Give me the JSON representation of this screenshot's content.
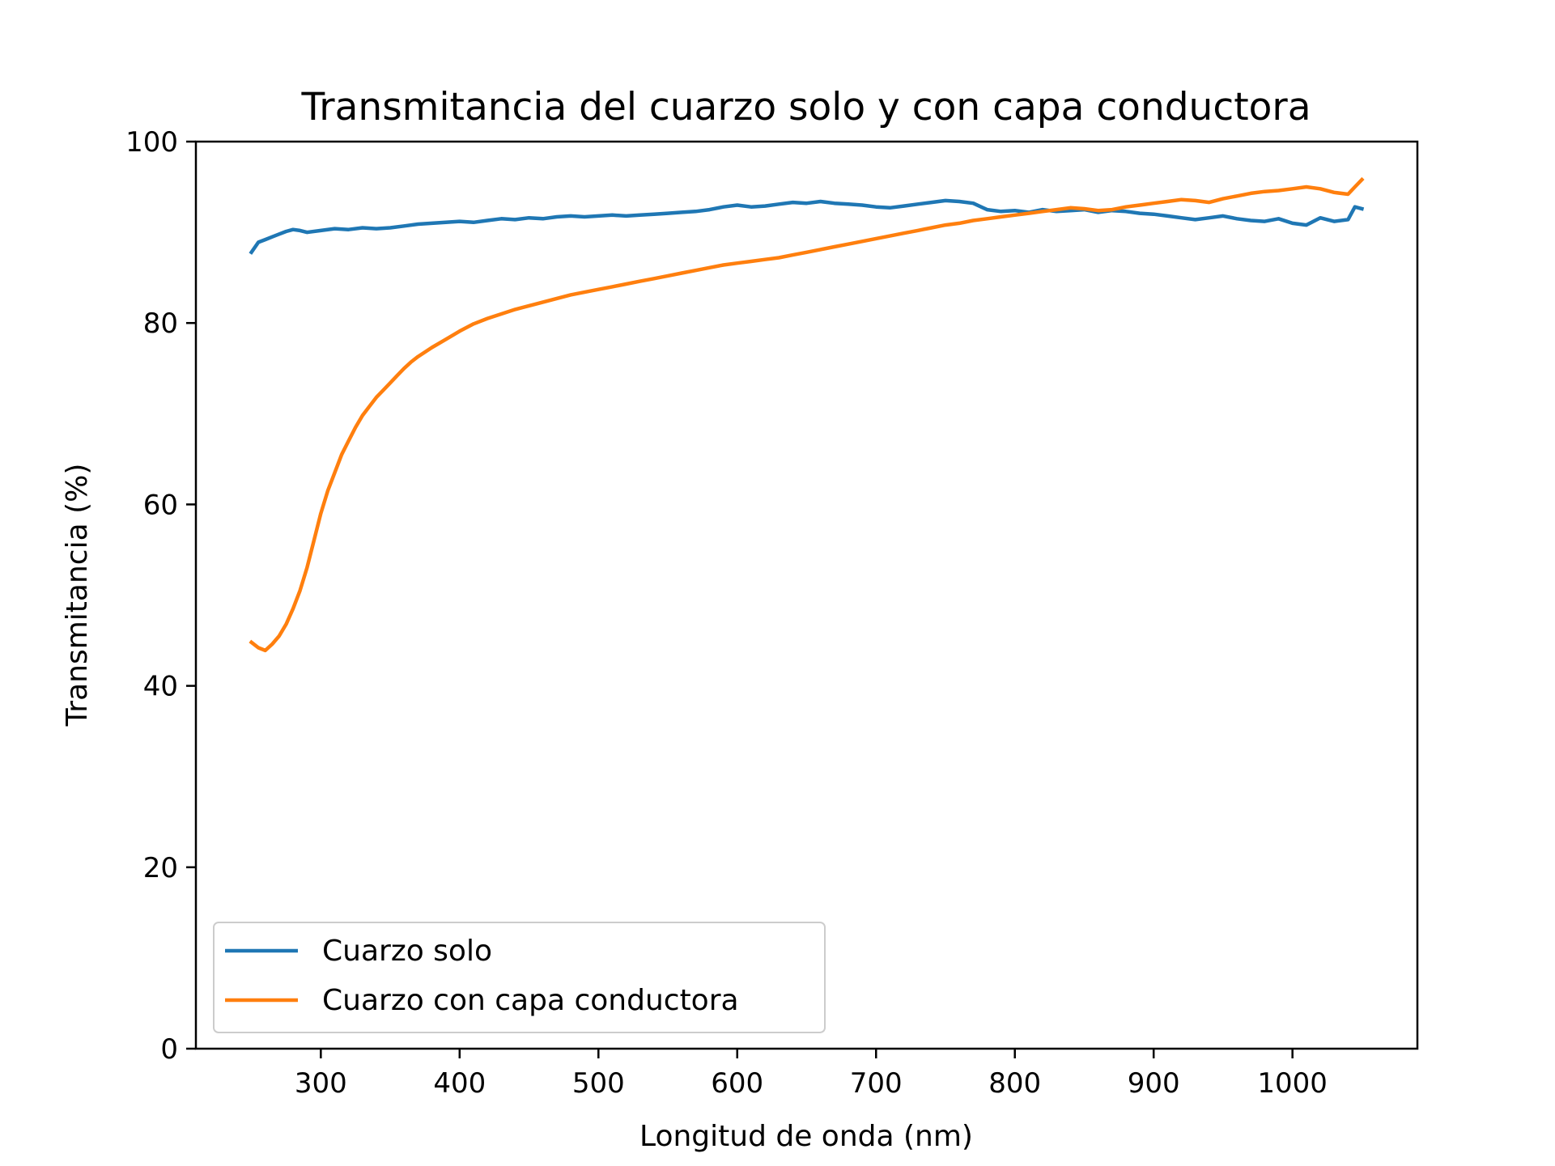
{
  "chart_data": {
    "type": "line",
    "title": "Transmitancia del cuarzo solo y con capa conductora",
    "xlabel": "Longitud de onda (nm)",
    "ylabel": "Transmitancia (%)",
    "xlim": [
      210,
      1090
    ],
    "ylim": [
      0,
      100
    ],
    "xticks": [
      300,
      400,
      500,
      600,
      700,
      800,
      900,
      1000
    ],
    "yticks": [
      0,
      20,
      40,
      60,
      80,
      100
    ],
    "grid": false,
    "legend_position": "lower-left",
    "series": [
      {
        "name": "Cuarzo solo",
        "color": "#1f77b4",
        "x": [
          250,
          255,
          260,
          265,
          270,
          275,
          280,
          285,
          290,
          300,
          310,
          320,
          330,
          340,
          350,
          360,
          370,
          380,
          390,
          400,
          410,
          420,
          430,
          440,
          450,
          460,
          470,
          480,
          490,
          500,
          510,
          520,
          530,
          540,
          550,
          560,
          570,
          580,
          590,
          600,
          610,
          620,
          630,
          640,
          650,
          660,
          670,
          680,
          690,
          700,
          710,
          720,
          730,
          740,
          750,
          760,
          770,
          780,
          790,
          800,
          810,
          820,
          830,
          840,
          850,
          860,
          870,
          880,
          890,
          900,
          910,
          920,
          930,
          940,
          950,
          960,
          970,
          980,
          990,
          1000,
          1010,
          1020,
          1030,
          1040,
          1045,
          1050
        ],
        "values": [
          87.8,
          88.9,
          89.2,
          89.5,
          89.8,
          90.1,
          90.3,
          90.2,
          90.0,
          90.2,
          90.4,
          90.3,
          90.5,
          90.4,
          90.5,
          90.7,
          90.9,
          91.0,
          91.1,
          91.2,
          91.1,
          91.3,
          91.5,
          91.4,
          91.6,
          91.5,
          91.7,
          91.8,
          91.7,
          91.8,
          91.9,
          91.8,
          91.9,
          92.0,
          92.1,
          92.2,
          92.3,
          92.5,
          92.8,
          93.0,
          92.8,
          92.9,
          93.1,
          93.3,
          93.2,
          93.4,
          93.2,
          93.1,
          93.0,
          92.8,
          92.7,
          92.9,
          93.1,
          93.3,
          93.5,
          93.4,
          93.2,
          92.5,
          92.3,
          92.4,
          92.2,
          92.5,
          92.3,
          92.4,
          92.5,
          92.2,
          92.4,
          92.3,
          92.1,
          92.0,
          91.8,
          91.6,
          91.4,
          91.6,
          91.8,
          91.5,
          91.3,
          91.2,
          91.5,
          91.0,
          90.8,
          91.6,
          91.2,
          91.4,
          92.8,
          92.6
        ]
      },
      {
        "name": "Cuarzo con capa conductora",
        "color": "#ff7f0e",
        "x": [
          250,
          255,
          260,
          265,
          270,
          275,
          280,
          285,
          290,
          295,
          300,
          305,
          310,
          315,
          320,
          325,
          330,
          335,
          340,
          345,
          350,
          355,
          360,
          365,
          370,
          380,
          390,
          400,
          410,
          420,
          430,
          440,
          450,
          460,
          470,
          480,
          490,
          500,
          510,
          520,
          530,
          540,
          550,
          560,
          570,
          580,
          590,
          600,
          610,
          620,
          630,
          640,
          650,
          660,
          670,
          680,
          690,
          700,
          710,
          720,
          730,
          740,
          750,
          760,
          770,
          780,
          790,
          800,
          810,
          820,
          830,
          840,
          850,
          860,
          870,
          880,
          890,
          900,
          910,
          920,
          930,
          940,
          950,
          960,
          970,
          980,
          990,
          1000,
          1010,
          1020,
          1030,
          1040,
          1045,
          1050
        ],
        "values": [
          44.8,
          44.2,
          43.9,
          44.6,
          45.5,
          46.8,
          48.5,
          50.5,
          53.0,
          56.0,
          59.0,
          61.5,
          63.5,
          65.5,
          67.0,
          68.5,
          69.8,
          70.8,
          71.8,
          72.6,
          73.4,
          74.2,
          75.0,
          75.7,
          76.3,
          77.3,
          78.2,
          79.1,
          79.9,
          80.5,
          81.0,
          81.5,
          81.9,
          82.3,
          82.7,
          83.1,
          83.4,
          83.7,
          84.0,
          84.3,
          84.6,
          84.9,
          85.2,
          85.5,
          85.8,
          86.1,
          86.4,
          86.6,
          86.8,
          87.0,
          87.2,
          87.5,
          87.8,
          88.1,
          88.4,
          88.7,
          89.0,
          89.3,
          89.6,
          89.9,
          90.2,
          90.5,
          90.8,
          91.0,
          91.3,
          91.5,
          91.7,
          91.9,
          92.1,
          92.3,
          92.5,
          92.7,
          92.6,
          92.4,
          92.5,
          92.8,
          93.0,
          93.2,
          93.4,
          93.6,
          93.5,
          93.3,
          93.7,
          94.0,
          94.3,
          94.5,
          94.6,
          94.8,
          95.0,
          94.8,
          94.4,
          94.2,
          95.0,
          95.8
        ]
      }
    ]
  }
}
